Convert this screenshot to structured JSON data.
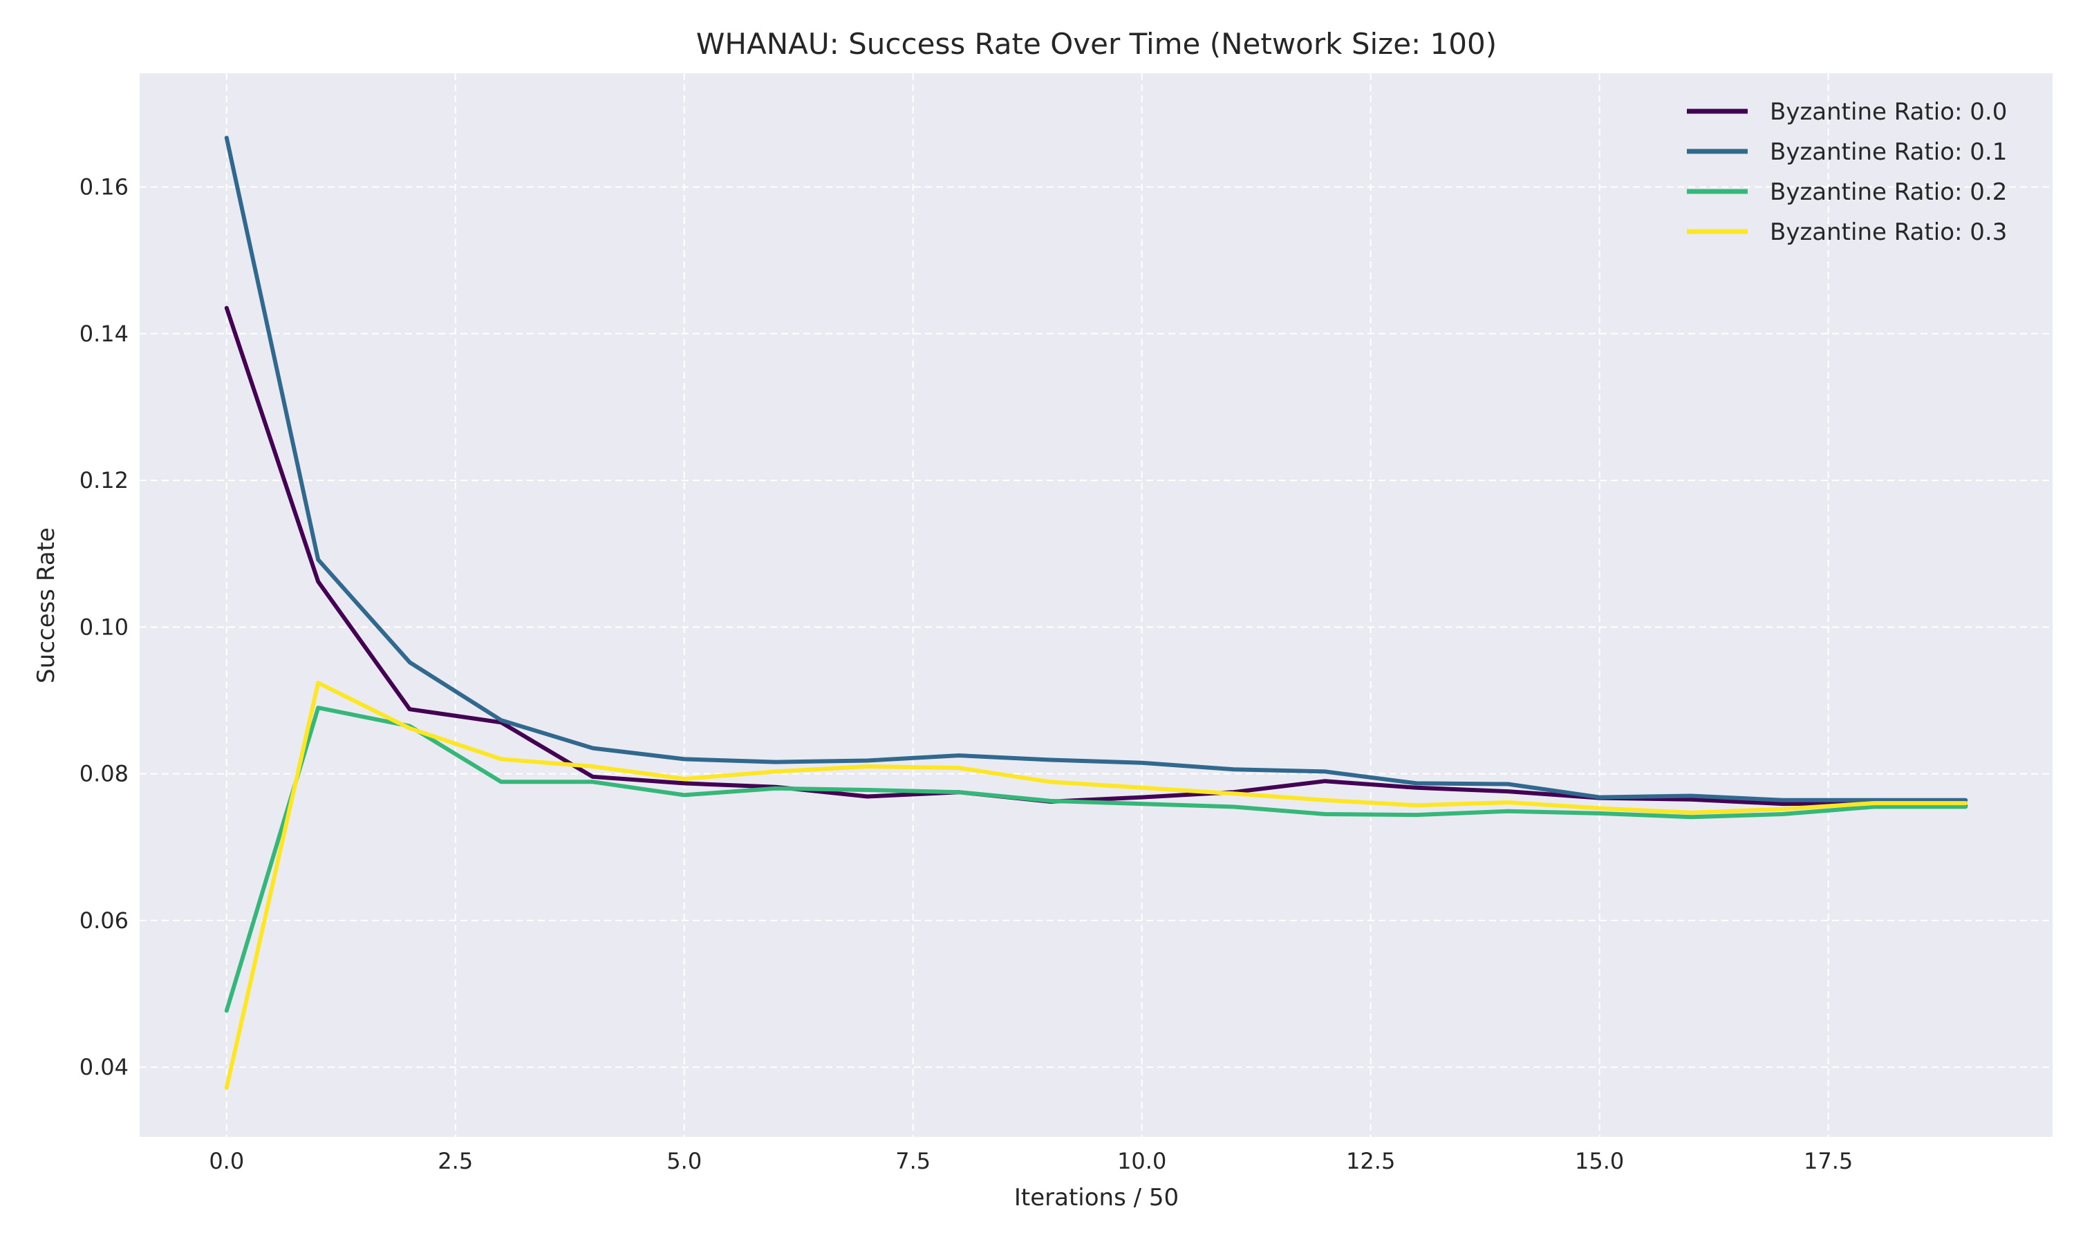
{
  "chart_data": {
    "type": "line",
    "title": "WHANAU: Success Rate Over Time (Network Size: 100)",
    "xlabel": "Iterations / 50",
    "ylabel": "Success Rate",
    "xlim": [
      -0.95,
      19.95
    ],
    "ylim": [
      0.0305,
      0.1755
    ],
    "xticks": [
      0.0,
      2.5,
      5.0,
      7.5,
      10.0,
      12.5,
      15.0,
      17.5
    ],
    "xtick_labels": [
      "0.0",
      "2.5",
      "5.0",
      "7.5",
      "10.0",
      "12.5",
      "15.0",
      "17.5"
    ],
    "yticks": [
      0.04,
      0.06,
      0.08,
      0.1,
      0.12,
      0.14,
      0.16
    ],
    "ytick_labels": [
      "0.04",
      "0.06",
      "0.08",
      "0.10",
      "0.12",
      "0.14",
      "0.16"
    ],
    "grid": true,
    "legend_position": "top-right",
    "x": [
      0,
      1,
      2,
      3,
      4,
      5,
      6,
      7,
      8,
      9,
      10,
      11,
      12,
      13,
      14,
      15,
      16,
      17,
      18,
      19
    ],
    "series": [
      {
        "name": "Byzantine Ratio: 0.0",
        "color": "#440154",
        "values": [
          0.1435,
          0.1062,
          0.0888,
          0.087,
          0.0796,
          0.0787,
          0.0782,
          0.0769,
          0.0775,
          0.0762,
          0.0768,
          0.0775,
          0.079,
          0.0781,
          0.0776,
          0.0767,
          0.0765,
          0.0759,
          0.076,
          0.0756
        ]
      },
      {
        "name": "Byzantine Ratio: 0.1",
        "color": "#31688e",
        "values": [
          0.1667,
          0.1092,
          0.0952,
          0.0873,
          0.0835,
          0.082,
          0.0816,
          0.0818,
          0.0825,
          0.0819,
          0.0815,
          0.0806,
          0.0803,
          0.0787,
          0.0786,
          0.0768,
          0.077,
          0.0764,
          0.0764,
          0.0764
        ]
      },
      {
        "name": "Byzantine Ratio: 0.2",
        "color": "#35b779",
        "values": [
          0.0477,
          0.089,
          0.0865,
          0.0789,
          0.0789,
          0.0771,
          0.078,
          0.0778,
          0.0775,
          0.0763,
          0.0759,
          0.0755,
          0.0745,
          0.0744,
          0.0749,
          0.0746,
          0.0741,
          0.0745,
          0.0755,
          0.0755
        ]
      },
      {
        "name": "Byzantine Ratio: 0.3",
        "color": "#fde725",
        "values": [
          0.0372,
          0.0924,
          0.0862,
          0.082,
          0.081,
          0.0793,
          0.0803,
          0.081,
          0.0808,
          0.0789,
          0.0781,
          0.0773,
          0.0764,
          0.0757,
          0.0761,
          0.0753,
          0.0747,
          0.0752,
          0.076,
          0.076
        ]
      }
    ]
  }
}
